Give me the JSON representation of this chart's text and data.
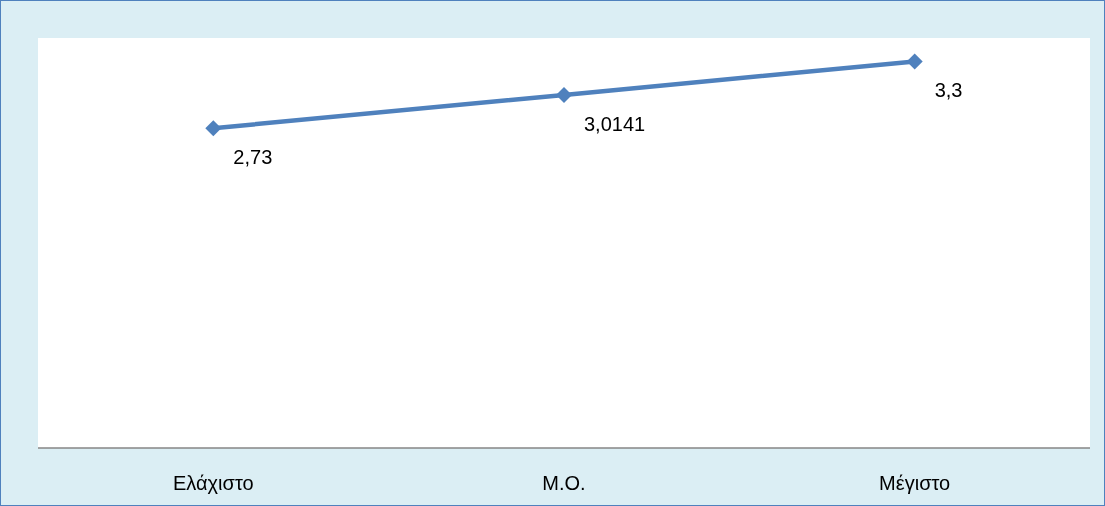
{
  "chart_data": {
    "type": "line",
    "categories": [
      "Ελάχιστο",
      "Μ.Ο.",
      "Μέγιστο"
    ],
    "series": [
      {
        "color": "#4f81bd",
        "values": [
          2.73,
          3.0141,
          3.3
        ],
        "value_labels": [
          "2,73",
          "3,0141",
          "3,3"
        ]
      }
    ],
    "ylim": [
      0,
      3.5
    ],
    "tick_labels": "x",
    "marker": "diamond",
    "line_style": "solid"
  }
}
